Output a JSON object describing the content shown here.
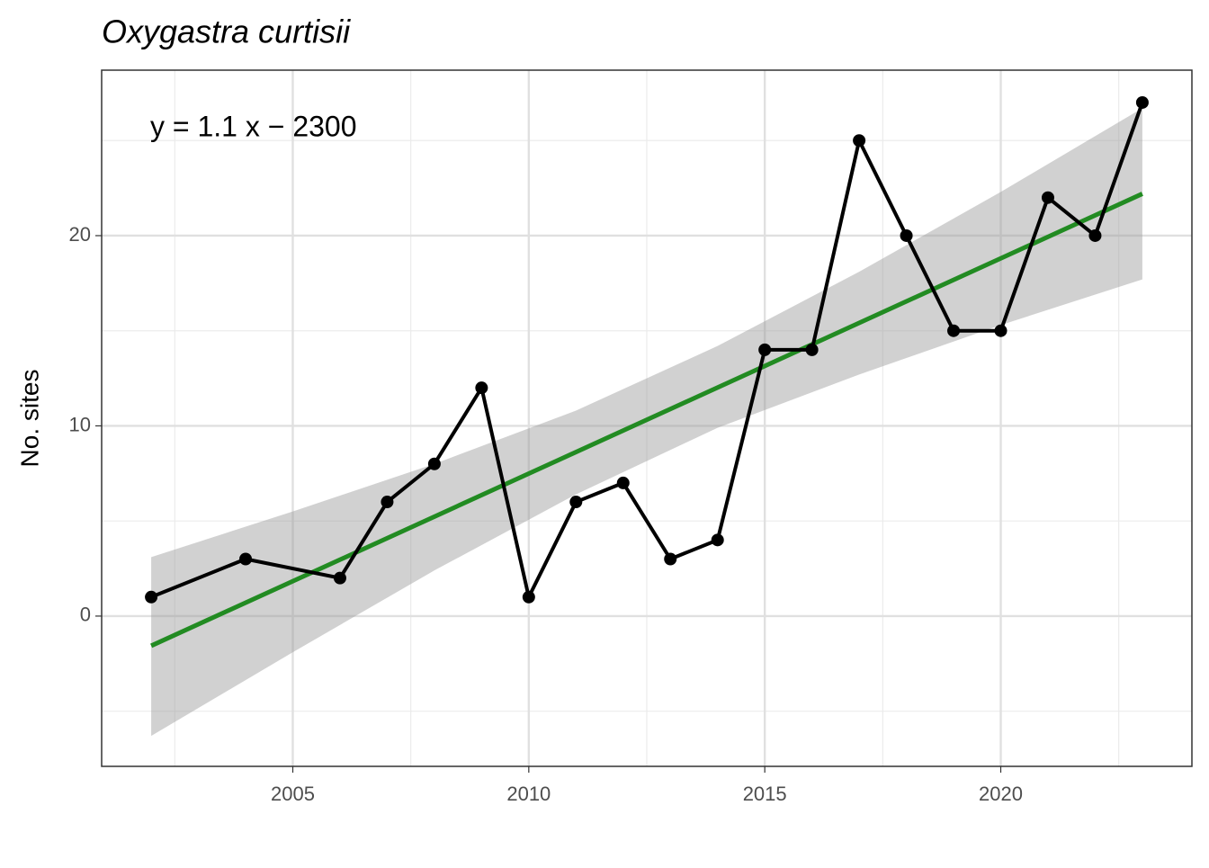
{
  "chart_data": {
    "type": "line",
    "title": "Oxygastra curtisii",
    "y_label": "No. sites",
    "annotation": "y = 1.1 x − 2300",
    "x": [
      2002,
      2004,
      2006,
      2007,
      2008,
      2009,
      2010,
      2011,
      2012,
      2013,
      2014,
      2015,
      2016,
      2017,
      2018,
      2019,
      2020,
      2021,
      2022,
      2023
    ],
    "series": [
      {
        "name": "No. sites",
        "color": "#000000",
        "values": [
          1,
          3,
          2,
          6,
          8,
          12,
          1,
          6,
          7,
          3,
          4,
          14,
          14,
          25,
          20,
          15,
          15,
          22,
          20,
          27
        ]
      }
    ],
    "fit": {
      "color": "#228B22",
      "x": [
        2002,
        2023
      ],
      "values": [
        -1.56,
        22.2
      ]
    },
    "ribbon": {
      "color": "#999999",
      "x": [
        2002,
        2005,
        2008,
        2011,
        2014,
        2017,
        2020,
        2023
      ],
      "upper": [
        3.1,
        5.5,
        8.0,
        10.8,
        14.2,
        18.1,
        22.3,
        26.7
      ],
      "lower": [
        -6.3,
        -1.9,
        2.4,
        6.4,
        9.9,
        12.7,
        15.3,
        17.7
      ]
    },
    "xlim": [
      2000.95,
      2024.05
    ],
    "xticks": [
      2005,
      2010,
      2015,
      2020
    ],
    "xminor_ticks": [
      2002.5,
      2007.5,
      2012.5,
      2017.5,
      2022.5
    ],
    "ylim": [
      -7.9,
      28.7
    ],
    "yticks": [
      0,
      10,
      20
    ],
    "yminor_ticks": [
      -5,
      5,
      15,
      25
    ],
    "grid": true
  }
}
